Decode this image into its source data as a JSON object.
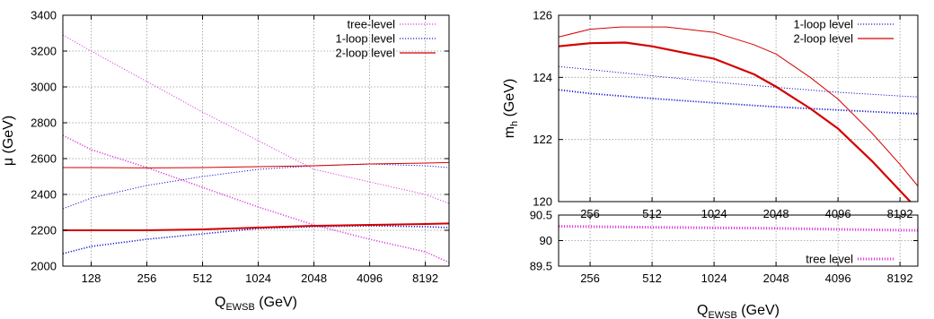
{
  "chart_data": [
    {
      "type": "line",
      "xlabel": "Q",
      "xlabel_sub": "EWSB",
      "xlabel_unit": " (GeV)",
      "ylabel": "μ (GeV)",
      "xscale": "log2",
      "xlim": [
        90,
        11000
      ],
      "ylim": [
        2000,
        3400
      ],
      "xticks": [
        128,
        256,
        512,
        1024,
        2048,
        4096,
        8192
      ],
      "yticks": [
        2000,
        2200,
        2400,
        2600,
        2800,
        3000,
        3200,
        3400
      ],
      "grid": true,
      "legend_position": "top-right",
      "legend": [
        {
          "label": "tree-level",
          "color": "#e040e0",
          "style": "dotted"
        },
        {
          "label": "1-loop level",
          "color": "#1a1acc",
          "style": "dotted"
        },
        {
          "label": "2-loop level",
          "color": "#d40000",
          "style": "solid"
        }
      ],
      "series": [
        {
          "legend": 0,
          "width": 1.0,
          "x": [
            90,
            128,
            256,
            512,
            1024,
            2048,
            4096,
            8192,
            11000
          ],
          "y": [
            3290,
            3200,
            3030,
            2860,
            2700,
            2540,
            2470,
            2400,
            2350
          ]
        },
        {
          "legend": 0,
          "width": 1.6,
          "x": [
            90,
            128,
            256,
            512,
            1024,
            2048,
            4096,
            8192,
            11000
          ],
          "y": [
            2730,
            2650,
            2550,
            2440,
            2330,
            2230,
            2150,
            2080,
            2020
          ]
        },
        {
          "legend": 1,
          "width": 1.0,
          "x": [
            90,
            128,
            256,
            512,
            1024,
            2048,
            4096,
            8192,
            11000
          ],
          "y": [
            2320,
            2380,
            2450,
            2500,
            2540,
            2560,
            2570,
            2560,
            2550
          ]
        },
        {
          "legend": 1,
          "width": 1.6,
          "x": [
            90,
            128,
            256,
            512,
            1024,
            2048,
            4096,
            8192,
            11000
          ],
          "y": [
            2070,
            2110,
            2150,
            2180,
            2210,
            2220,
            2225,
            2220,
            2215
          ]
        },
        {
          "legend": 2,
          "width": 1.0,
          "x": [
            90,
            128,
            256,
            512,
            1024,
            2048,
            4096,
            8192,
            11000
          ],
          "y": [
            2550,
            2550,
            2548,
            2550,
            2555,
            2560,
            2570,
            2575,
            2578
          ]
        },
        {
          "legend": 2,
          "width": 2.0,
          "x": [
            90,
            128,
            256,
            512,
            1024,
            2048,
            4096,
            8192,
            11000
          ],
          "y": [
            2200,
            2200,
            2200,
            2205,
            2215,
            2225,
            2230,
            2235,
            2238
          ]
        }
      ]
    },
    {
      "type": "line",
      "ylabel": "m",
      "ylabel_sub": "h",
      "ylabel_unit": " (GeV)",
      "xscale": "log2",
      "xlim": [
        180,
        10000
      ],
      "ylim": [
        120,
        126
      ],
      "xticks": [
        256,
        512,
        1024,
        2048,
        4096,
        8192
      ],
      "yticks": [
        120,
        122,
        124,
        126
      ],
      "grid": true,
      "legend_position": "top-right",
      "legend": [
        {
          "label": "1-loop level",
          "color": "#1a1acc",
          "style": "dotted"
        },
        {
          "label": "2-loop level",
          "color": "#d40000",
          "style": "solid"
        }
      ],
      "series": [
        {
          "legend": 0,
          "width": 1.0,
          "x": [
            180,
            256,
            512,
            1024,
            2048,
            4096,
            8192,
            10000
          ],
          "y": [
            124.35,
            124.25,
            124.05,
            123.85,
            123.68,
            123.52,
            123.4,
            123.37
          ]
        },
        {
          "legend": 0,
          "width": 1.8,
          "x": [
            180,
            256,
            512,
            1024,
            2048,
            4096,
            8192,
            10000
          ],
          "y": [
            123.6,
            123.48,
            123.32,
            123.18,
            123.05,
            122.95,
            122.85,
            122.83
          ]
        },
        {
          "legend": 1,
          "width": 1.0,
          "x": [
            180,
            256,
            360,
            600,
            1024,
            1600,
            2048,
            3000,
            4096,
            6000,
            8192,
            10000
          ],
          "y": [
            125.3,
            125.55,
            125.62,
            125.62,
            125.45,
            125.05,
            124.75,
            124.0,
            123.3,
            122.2,
            121.2,
            120.5
          ]
        },
        {
          "legend": 1,
          "width": 2.2,
          "x": [
            180,
            256,
            380,
            512,
            1024,
            1600,
            2048,
            3000,
            4096,
            6000,
            8192,
            9500
          ],
          "y": [
            125.0,
            125.1,
            125.12,
            125.0,
            124.6,
            124.1,
            123.7,
            123.0,
            122.35,
            121.3,
            120.35,
            119.9
          ]
        }
      ]
    },
    {
      "type": "line",
      "xlabel": "Q",
      "xlabel_sub": "EWSB",
      "xlabel_unit": " (GeV)",
      "xscale": "log2",
      "xlim": [
        180,
        10000
      ],
      "ylim": [
        89.5,
        90.5
      ],
      "xticks": [
        256,
        512,
        1024,
        2048,
        4096,
        8192
      ],
      "yticks": [
        89.5,
        90,
        90.5
      ],
      "grid": true,
      "legend_position": "bottom-right",
      "legend": [
        {
          "label": "tree level",
          "color": "#e040e0",
          "style": "dotted"
        }
      ],
      "series": [
        {
          "legend": 0,
          "width": 3.0,
          "x": [
            180,
            512,
            1024,
            2048,
            4096,
            10000
          ],
          "y": [
            90.28,
            90.26,
            90.25,
            90.24,
            90.22,
            90.2
          ]
        }
      ]
    }
  ]
}
